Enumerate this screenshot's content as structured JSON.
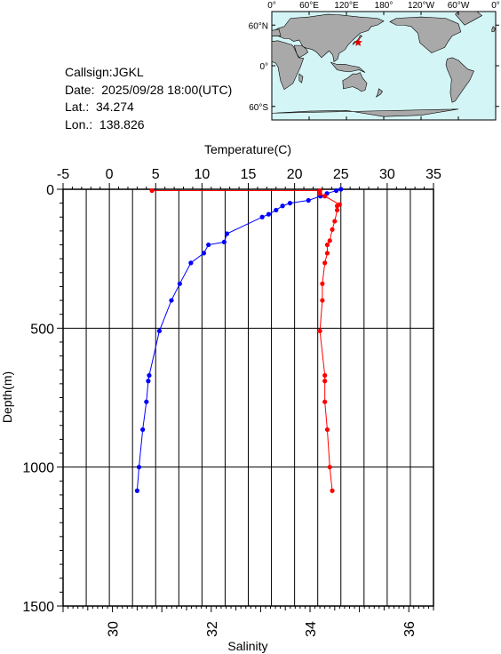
{
  "station": {
    "callsign": "Callsign:JGKL",
    "date": "Date:  2025/09/28 18:00(UTC)",
    "lat": "Lat.:  34.274",
    "lon": "Lon.:  138.826"
  },
  "map": {
    "lon_labels": [
      "0°",
      "60°E",
      "120°E",
      "180°",
      "120°W",
      "60°W",
      "0°"
    ],
    "lat_labels": [
      "60°N",
      "0°",
      "60°S"
    ],
    "ocean_color": "#d4f5f6",
    "land_color": "#a9a9a9",
    "marker": {
      "lat": 34.274,
      "lon": 138.826,
      "symbol": "star",
      "color": "#e00000"
    }
  },
  "chart_data": {
    "type": "line",
    "top_axis_label": "Temperature(C)",
    "bottom_axis_label": "Salinity",
    "y_axis_label": "Depth(m)",
    "temperature_range": [
      -5,
      35
    ],
    "temperature_ticks": [
      "-5",
      "0",
      "5",
      "10",
      "15",
      "20",
      "25",
      "30",
      "35"
    ],
    "salinity_range": [
      29,
      36.5
    ],
    "salinity_ticks": [
      "30",
      "32",
      "34",
      "36"
    ],
    "depth_range": [
      0,
      1500
    ],
    "depth_ticks": [
      "0",
      "500",
      "1000",
      "1500"
    ],
    "grid": true,
    "series": [
      {
        "color": "#0000ff",
        "variable": "temperature",
        "points": [
          [
            25.0,
            0
          ],
          [
            24.5,
            5
          ],
          [
            23.5,
            15
          ],
          [
            22.8,
            25
          ],
          [
            21.5,
            40
          ],
          [
            19.5,
            50
          ],
          [
            18.7,
            60
          ],
          [
            18.0,
            75
          ],
          [
            17.2,
            90
          ],
          [
            16.5,
            100
          ],
          [
            12.7,
            160
          ],
          [
            12.4,
            190
          ],
          [
            10.7,
            200
          ],
          [
            10.2,
            230
          ],
          [
            8.8,
            265
          ],
          [
            7.6,
            340
          ],
          [
            6.7,
            400
          ],
          [
            5.4,
            510
          ],
          [
            4.3,
            670
          ],
          [
            4.2,
            690
          ],
          [
            4.0,
            765
          ],
          [
            3.6,
            865
          ],
          [
            3.2,
            1000
          ],
          [
            3.0,
            1085
          ]
        ]
      },
      {
        "color": "#ff0000",
        "variable": "salinity",
        "points": [
          [
            30.8,
            5
          ],
          [
            34.2,
            5
          ],
          [
            34.2,
            15
          ],
          [
            34.3,
            25
          ],
          [
            34.6,
            55
          ],
          [
            34.55,
            60
          ],
          [
            34.55,
            75
          ],
          [
            34.5,
            115
          ],
          [
            34.45,
            145
          ],
          [
            34.4,
            185
          ],
          [
            34.35,
            200
          ],
          [
            34.35,
            230
          ],
          [
            34.3,
            265
          ],
          [
            34.25,
            340
          ],
          [
            34.25,
            400
          ],
          [
            34.2,
            510
          ],
          [
            34.3,
            670
          ],
          [
            34.3,
            690
          ],
          [
            34.3,
            765
          ],
          [
            34.35,
            865
          ],
          [
            34.4,
            1000
          ],
          [
            34.45,
            1085
          ]
        ]
      }
    ]
  }
}
